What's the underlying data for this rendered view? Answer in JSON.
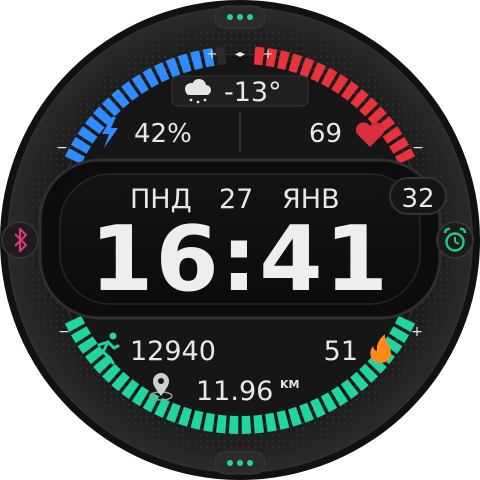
{
  "weather": {
    "icon": "cloud-snow-icon",
    "temperature": "-13°"
  },
  "battery": {
    "icon": "lightning-icon",
    "percent": 42,
    "label": "42%"
  },
  "heart_rate": {
    "icon": "heart-icon",
    "value": "69"
  },
  "date": {
    "weekday": "ПНД",
    "day": "27",
    "month": "ЯНВ",
    "week_number": "32"
  },
  "time": {
    "display": "16:41"
  },
  "bluetooth": {
    "icon": "bluetooth-icon"
  },
  "alarm": {
    "icon": "alarm-clock-icon"
  },
  "steps": {
    "icon": "running-person-icon",
    "value": "12940"
  },
  "calories": {
    "icon": "flame-icon",
    "value": "51"
  },
  "distance": {
    "icon": "location-pin-icon",
    "value": "11.96",
    "unit": "KM"
  },
  "gauges": {
    "battery_level": 0.42,
    "heart_level": 0.45,
    "steps_level": 0.9,
    "plus_symbol": "+",
    "minus_symbol": "−"
  },
  "colors": {
    "battery": "#2f8cff",
    "heart": "#e8323c",
    "steps": "#1fd6a0",
    "date_accent": "#33e0a8",
    "bluetooth": "#e0337a",
    "alarm": "#1fc98a",
    "flame": "#ff8a1a",
    "heart_icon": "#d8303c"
  }
}
